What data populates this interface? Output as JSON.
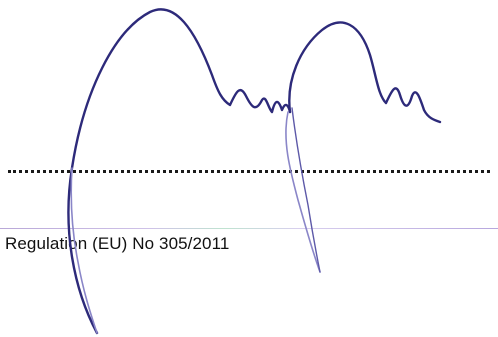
{
  "document": {
    "regulation_text": "Regulation (EU) No 305/2011"
  },
  "colors": {
    "ink": "#2d2a7a",
    "faint_ink": "#8a86c8",
    "text": "#111111"
  }
}
